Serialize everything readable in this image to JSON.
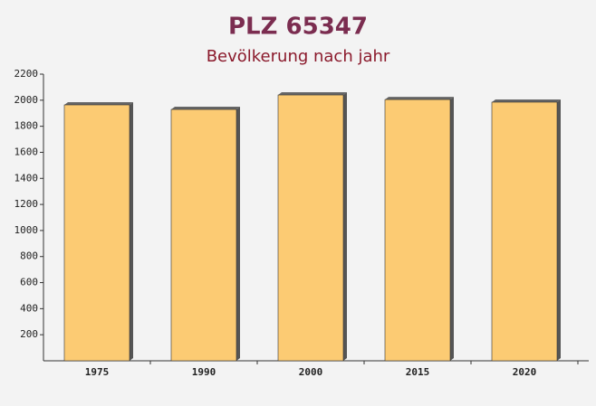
{
  "chart_data": {
    "type": "bar",
    "title": "PLZ 65347",
    "subtitle": "Bevölkerung nach jahr",
    "categories": [
      "1975",
      "1990",
      "2000",
      "2015",
      "2020"
    ],
    "values": [
      1964,
      1929,
      2040,
      2005,
      1985
    ],
    "color": "#fdc665",
    "ylim": [
      0,
      2200
    ],
    "yticks": [
      200,
      400,
      600,
      800,
      1000,
      1200,
      1400,
      1600,
      1800,
      2000,
      2200
    ]
  }
}
